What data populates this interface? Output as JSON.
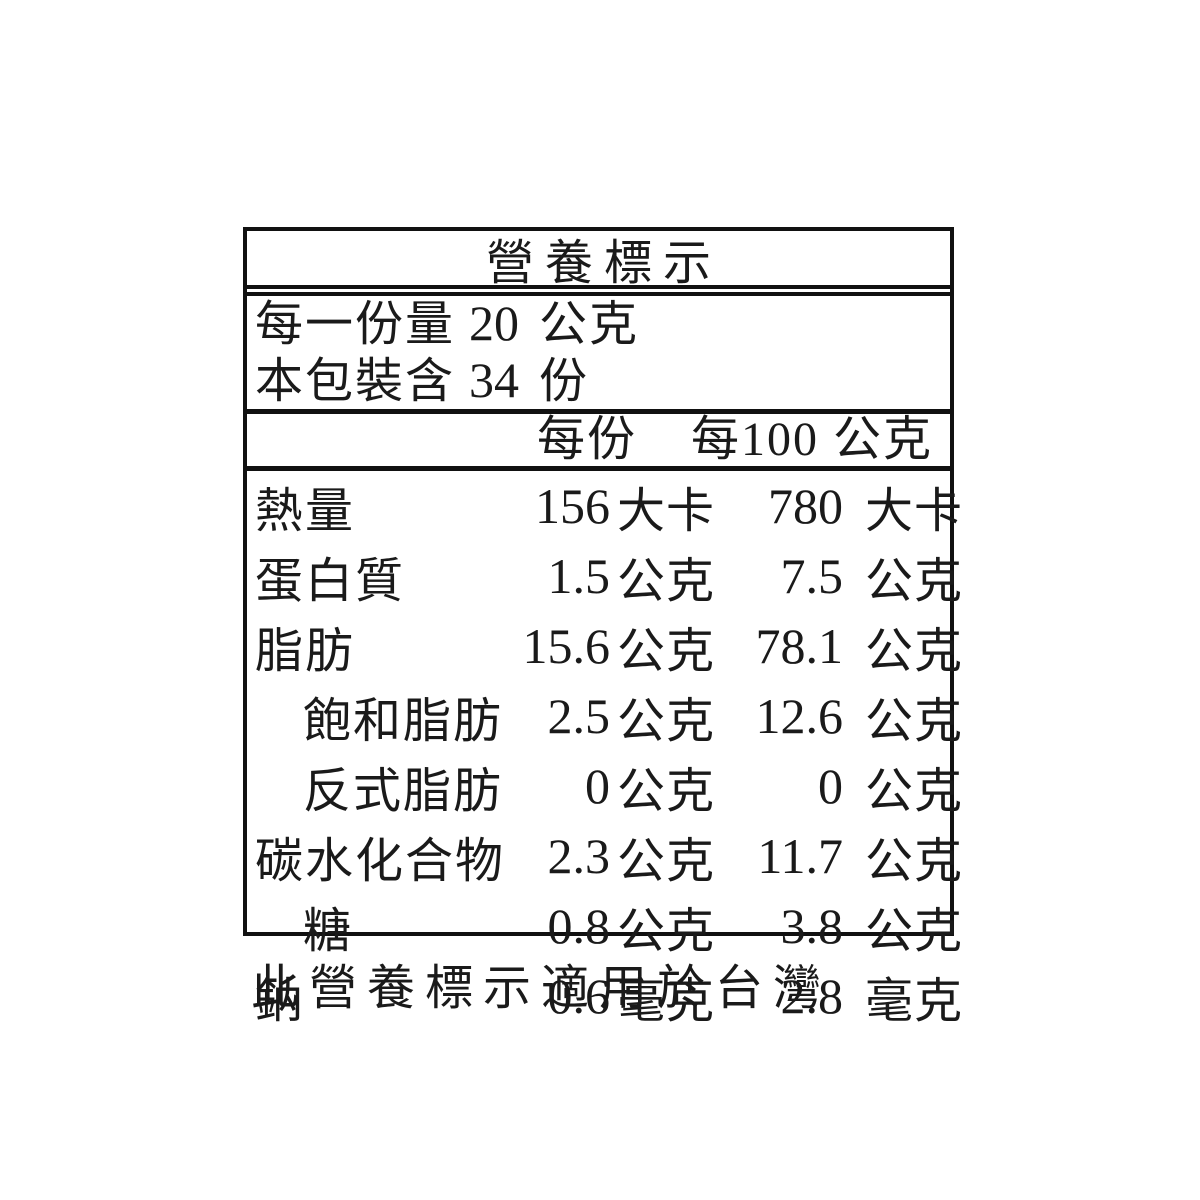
{
  "label": {
    "title": "營養標示",
    "serving": {
      "line1": {
        "prefix": "每一份量",
        "value": "20",
        "unit": "公克"
      },
      "line2": {
        "prefix": "本包裝含",
        "value": "34",
        "unit": "份"
      }
    },
    "column_headers": {
      "per_serving": "每份",
      "per_100g": "每100 公克"
    },
    "rows": [
      {
        "name": "熱量",
        "sub": false,
        "v1": "156",
        "u1": "大卡",
        "v2": "780",
        "u2": "大卡"
      },
      {
        "name": "蛋白質",
        "sub": false,
        "v1": "1.5",
        "u1": "公克",
        "v2": "7.5",
        "u2": "公克"
      },
      {
        "name": "脂肪",
        "sub": false,
        "v1": "15.6",
        "u1": "公克",
        "v2": "78.1",
        "u2": "公克"
      },
      {
        "name": "飽和脂肪",
        "sub": true,
        "v1": "2.5",
        "u1": "公克",
        "v2": "12.6",
        "u2": "公克"
      },
      {
        "name": "反式脂肪",
        "sub": true,
        "v1": "0",
        "u1": "公克",
        "v2": "0",
        "u2": "公克"
      },
      {
        "name": "碳水化合物",
        "sub": false,
        "v1": "2.3",
        "u1": "公克",
        "v2": "11.7",
        "u2": "公克"
      },
      {
        "name": "糖",
        "sub": true,
        "v1": "0.8",
        "u1": "公克",
        "v2": "3.8",
        "u2": "公克"
      },
      {
        "name": "鈉",
        "sub": false,
        "v1": "0.6",
        "u1": "毫克",
        "v2": "2.8",
        "u2": "毫克"
      }
    ],
    "footnote": "此營養標示適用於台灣",
    "colors": {
      "text": "#1a1a1a",
      "border": "#111111",
      "background": "#ffffff"
    }
  }
}
